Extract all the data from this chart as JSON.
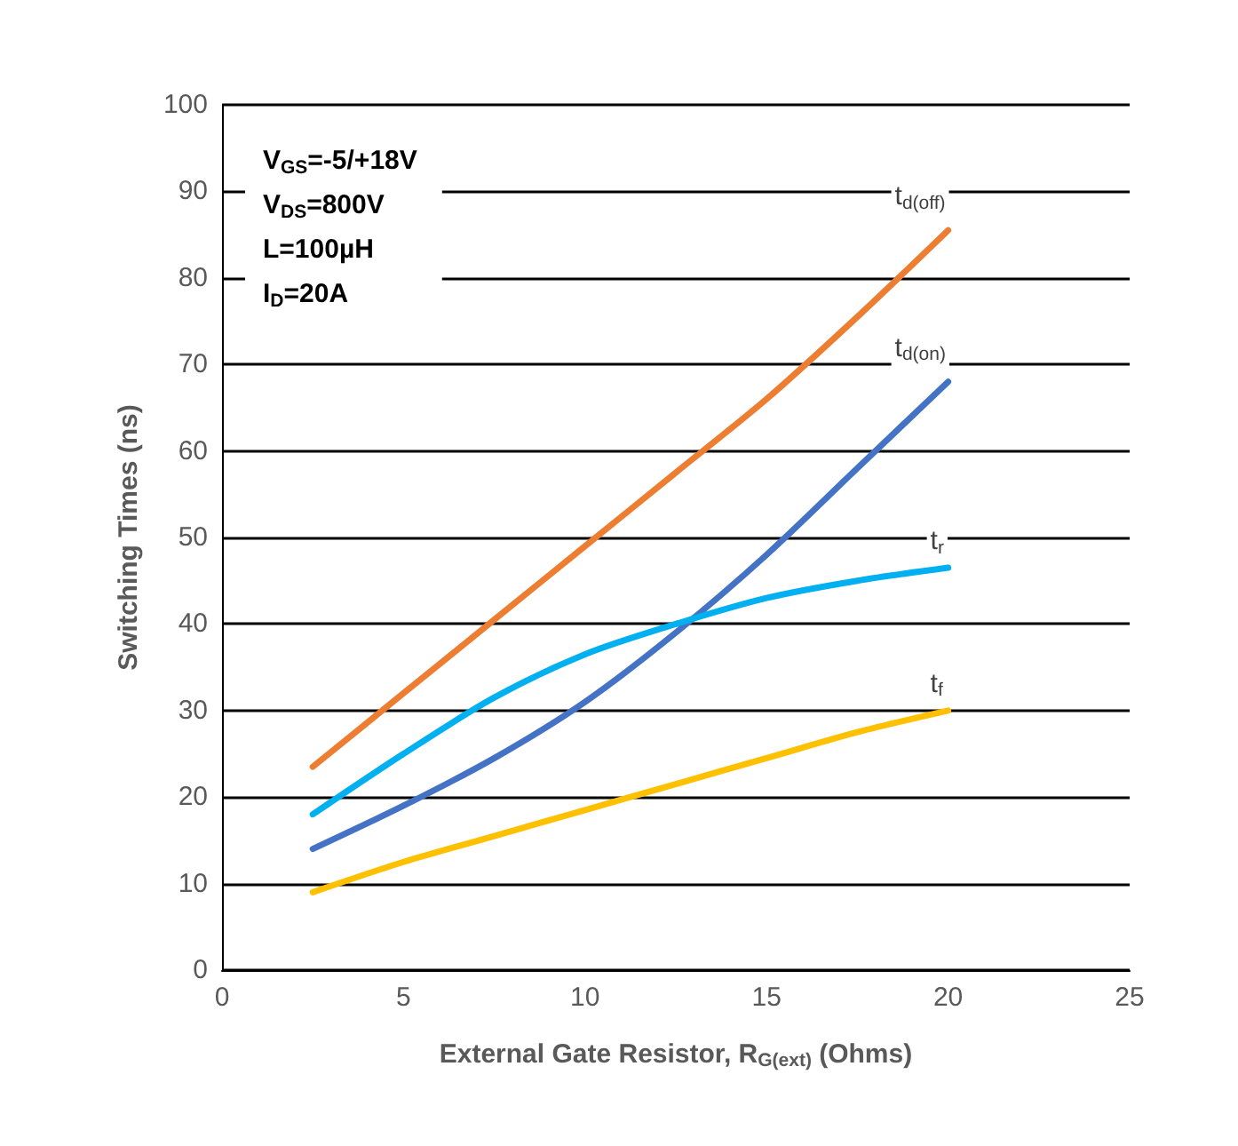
{
  "chart_data": {
    "type": "line",
    "xlabel": "External Gate Resistor, R$_{G(ext)}$ (Ohms)",
    "ylabel": "Switching Times (ns)",
    "xlim": [
      0,
      25
    ],
    "xticks": [
      0,
      5,
      10,
      15,
      20,
      25
    ],
    "ylim": [
      0,
      100
    ],
    "yticks": [
      0,
      10,
      20,
      30,
      40,
      50,
      60,
      70,
      80,
      90,
      100
    ],
    "grid": "y",
    "marker": "none",
    "line_style": "solid",
    "annotations": [
      "V$_{GS}$=-5/+18V",
      "V$_{DS}$=800V",
      "L=100µH",
      "I$_{D}$=20A"
    ],
    "series": [
      {
        "name": "t$_{d(off)}$",
        "color": "#ed7d31",
        "x": [
          2.5,
          5,
          7.5,
          10,
          12.5,
          15,
          17.5,
          20
        ],
        "values": [
          23.5,
          32,
          40.5,
          49,
          57.5,
          66,
          75.5,
          85.5
        ]
      },
      {
        "name": "t$_{d(on)}$",
        "color": "#4472c4",
        "x": [
          2.5,
          5,
          7.5,
          10,
          12.5,
          15,
          17.5,
          20
        ],
        "values": [
          14,
          19,
          24.5,
          31,
          39,
          48,
          58,
          68
        ]
      },
      {
        "name": "t$_{r}$",
        "color": "#00b0f0",
        "x": [
          2.5,
          5,
          7.5,
          10,
          12.5,
          15,
          17.5,
          20
        ],
        "values": [
          18,
          25,
          31.5,
          36.5,
          40,
          43,
          45,
          46.5
        ]
      },
      {
        "name": "t$_{f}$",
        "color": "#ffc000",
        "x": [
          2.5,
          5,
          7.5,
          10,
          12.5,
          15,
          17.5,
          20
        ],
        "values": [
          9,
          12.5,
          15.5,
          18.5,
          21.5,
          24.5,
          27.5,
          30
        ]
      }
    ]
  }
}
